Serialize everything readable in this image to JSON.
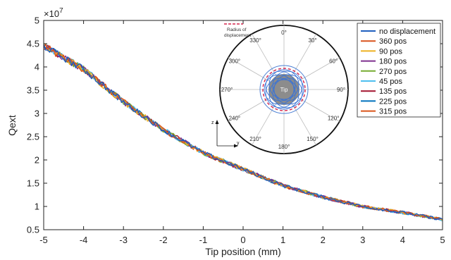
{
  "chart_data": {
    "type": "line",
    "xlabel": "Tip position (mm)",
    "ylabel": "Qext",
    "exponent_label": "×10",
    "exponent_power": "7",
    "xlim": [
      -5,
      5
    ],
    "ylim": [
      0.5,
      5
    ],
    "xticks": [
      "-5",
      "-4",
      "-3",
      "-2",
      "-1",
      "0",
      "1",
      "2",
      "3",
      "4",
      "5"
    ],
    "yticks": [
      "0.5",
      "1",
      "1.5",
      "2",
      "2.5",
      "3",
      "3.5",
      "4",
      "4.5",
      "5"
    ],
    "grid": false,
    "legend_position": "top-right",
    "trend": {
      "x": [
        -5,
        -4,
        -3,
        -2,
        -1,
        0,
        1,
        2,
        3,
        4,
        5
      ],
      "y": [
        4.45,
        3.95,
        3.25,
        2.65,
        2.15,
        1.8,
        1.45,
        1.2,
        1.0,
        0.87,
        0.72
      ]
    },
    "series": [
      {
        "name": "no displacement",
        "color": "#1f5fbf"
      },
      {
        "name": "360 pos",
        "color": "#d9531e"
      },
      {
        "name": "90 pos",
        "color": "#edb120"
      },
      {
        "name": "180 pos",
        "color": "#7e2f8e"
      },
      {
        "name": "270 pos",
        "color": "#77ac30"
      },
      {
        "name": "45 pos",
        "color": "#4dbeee"
      },
      {
        "name": "135 pos",
        "color": "#a2142f"
      },
      {
        "name": "225 pos",
        "color": "#0072bd"
      },
      {
        "name": "315 pos",
        "color": "#d95319"
      }
    ]
  },
  "inset": {
    "legend_label_line1": "Radius of",
    "legend_label_line2": "displacement",
    "tip_label": "Tip",
    "axis_z": "z",
    "axis_y": "y",
    "angle_labels": [
      "0°",
      "30°",
      "60°",
      "90°",
      "120°",
      "150°",
      "180°",
      "210°",
      "240°",
      "270°",
      "300°",
      "330°"
    ]
  }
}
